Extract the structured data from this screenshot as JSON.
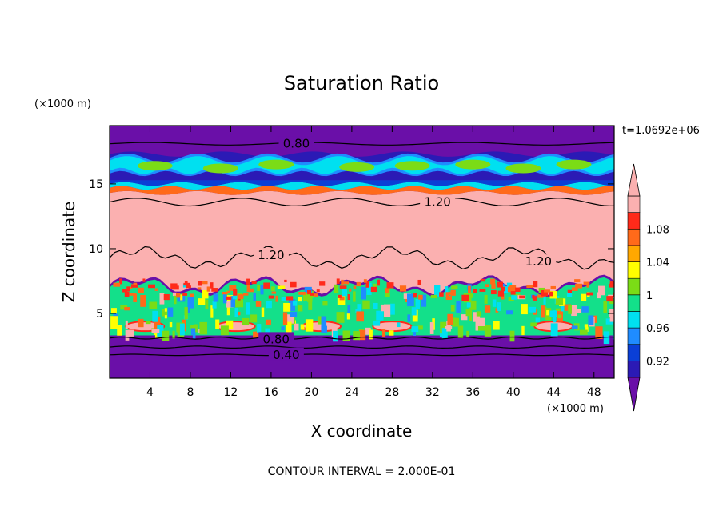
{
  "chart_data": {
    "type": "heatmap",
    "title": "Saturation Ratio",
    "xlabel": "X coordinate",
    "ylabel": "Z coordinate",
    "x_unit": "(×1000 m)",
    "y_unit": "(×1000 m)",
    "time_label": "t=1.0692e+06",
    "footer": "CONTOUR INTERVAL = 2.000E-01",
    "xlim": [
      0,
      50
    ],
    "ylim": [
      0,
      19.5
    ],
    "x_ticks": [
      4,
      8,
      12,
      16,
      20,
      24,
      28,
      32,
      36,
      40,
      44,
      48
    ],
    "y_ticks": [
      5,
      10,
      15
    ],
    "colorbar": {
      "levels": [
        0.92,
        0.94,
        0.96,
        0.98,
        1.0,
        1.02,
        1.04,
        1.06,
        1.08,
        1.1
      ],
      "tick_labels": [
        "0.92",
        "0.96",
        "1",
        "1.04",
        "1.08"
      ],
      "colors": [
        "#6a0fa8",
        "#2b1ab5",
        "#0a3fd6",
        "#1f8cff",
        "#00e0f0",
        "#13e08a",
        "#7bdc16",
        "#ffff00",
        "#ffa800",
        "#ff6a1a",
        "#ff2a1a",
        "#fbb0b0"
      ],
      "extend": "both"
    },
    "contour_labels": [
      {
        "text": "0.80",
        "x": 18.5,
        "y": 18.1
      },
      {
        "text": "1.20",
        "x": 32.5,
        "y": 13.6
      },
      {
        "text": "1.20",
        "x": 16.0,
        "y": 9.5
      },
      {
        "text": "1.20",
        "x": 42.5,
        "y": 9.0
      },
      {
        "text": "0.80",
        "x": 16.5,
        "y": 3.0
      },
      {
        "text": "0.40",
        "x": 17.5,
        "y": 1.8
      }
    ],
    "fields": [
      {
        "z_range": [
          0,
          3.3
        ],
        "value_range": "<0.92",
        "description_color": "#6a0fa8"
      },
      {
        "z_range": [
          3.3,
          7.0
        ],
        "value_range": "0.92–1.10"
      },
      {
        "z_range": [
          7.0,
          14.5
        ],
        "value_range": ">1.10"
      },
      {
        "z_range": [
          14.5,
          15.2
        ],
        "value_range": "0.92–1.10"
      },
      {
        "z_range": [
          15.2,
          17.4
        ],
        "value_range": "0.92–1.00"
      },
      {
        "z_range": [
          17.4,
          19.5
        ],
        "value_range": "<0.92"
      }
    ]
  }
}
